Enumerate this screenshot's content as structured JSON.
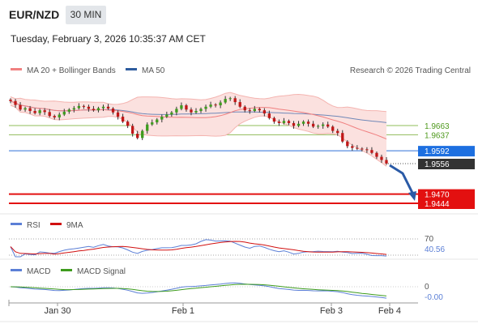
{
  "header": {
    "pair": "EUR/NZD",
    "timeframe": "30 MIN",
    "timestamp": "Tuesday, February 3, 2026 10:35:37 AM CET"
  },
  "legend": {
    "ma20": "MA 20 + Bollinger Bands",
    "ma50": "MA 50",
    "ma20_color": "#f08080",
    "ma50_color": "#2e5c9e",
    "copyright": "Research © 2026 Trading Central"
  },
  "price_levels": [
    {
      "value": "1.9663",
      "kind": "resistance",
      "color": "#8fbc5a"
    },
    {
      "value": "1.9637",
      "kind": "resistance",
      "color": "#8fbc5a"
    },
    {
      "value": "1.9592",
      "kind": "pivot",
      "color": "#2f6fd6"
    },
    {
      "value": "1.9556",
      "kind": "last",
      "color": "#333333"
    },
    {
      "value": "1.9470",
      "kind": "support",
      "color": "#e31010"
    },
    {
      "value": "1.9444",
      "kind": "support",
      "color": "#e31010"
    }
  ],
  "rsi_panel": {
    "label": "RSI",
    "ma_label": "9MA",
    "rsi_color": "#5b7fd6",
    "ma_color": "#d11010",
    "level": "70",
    "value": "40.56"
  },
  "macd_panel": {
    "label": "MACD",
    "signal_label": "MACD Signal",
    "macd_color": "#5b7fd6",
    "signal_color": "#3e9c1e",
    "zero": "0",
    "value": "-0.00"
  },
  "xaxis": {
    "labels": [
      "Jan 30",
      "Feb 1",
      "Feb 3",
      "Feb 4"
    ]
  },
  "chart_data": {
    "type": "candlestick",
    "ylim": [
      1.942,
      1.976
    ],
    "closes": [
      1.9732,
      1.9721,
      1.9708,
      1.9712,
      1.9704,
      1.9698,
      1.9706,
      1.9701,
      1.969,
      1.9686,
      1.9694,
      1.9702,
      1.9708,
      1.9712,
      1.9718,
      1.9716,
      1.971,
      1.9706,
      1.9712,
      1.9716,
      1.9711,
      1.97,
      1.9688,
      1.9674,
      1.9662,
      1.964,
      1.9628,
      1.9648,
      1.9666,
      1.9672,
      1.968,
      1.9688,
      1.9694,
      1.97,
      1.971,
      1.972,
      1.9708,
      1.97,
      1.9704,
      1.971,
      1.9716,
      1.9722,
      1.972,
      1.9728,
      1.9738,
      1.974,
      1.9729,
      1.9716,
      1.9706,
      1.9704,
      1.971,
      1.9706,
      1.9697,
      1.9684,
      1.9674,
      1.967,
      1.9676,
      1.967,
      1.9662,
      1.9668,
      1.9674,
      1.9668,
      1.966,
      1.9662,
      1.9666,
      1.966,
      1.9648,
      1.9642,
      1.9618,
      1.9605,
      1.96,
      1.9598,
      1.9596,
      1.9594,
      1.9586,
      1.9575,
      1.9566,
      1.9556
    ]
  }
}
